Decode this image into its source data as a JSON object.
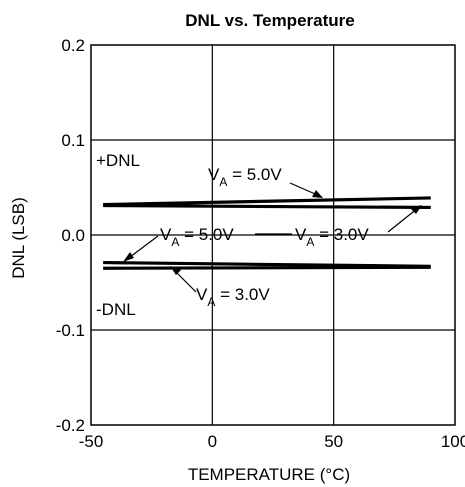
{
  "chart_data": {
    "type": "line",
    "title": "DNL vs. Temperature",
    "xlabel": "TEMPERATURE (°C)",
    "ylabel": "DNL (LSB)",
    "xlim": [
      -50,
      100
    ],
    "ylim": [
      -0.2,
      0.2
    ],
    "xticks": [
      -50,
      0,
      50,
      100
    ],
    "yticks": [
      -0.2,
      -0.1,
      0.0,
      0.1,
      0.2
    ],
    "xtick_labels": [
      "-50",
      "0",
      "50",
      "100"
    ],
    "ytick_labels": [
      "-0.2",
      "-0.1",
      "0.0",
      "0.1",
      "0.2"
    ],
    "grid": true,
    "series": [
      {
        "x": [
          -45,
          90
        ],
        "y": [
          0.032,
          0.039
        ]
      },
      {
        "x": [
          -45,
          90
        ],
        "y": [
          0.031,
          0.029
        ]
      },
      {
        "x": [
          -45,
          90
        ],
        "y": [
          -0.029,
          -0.033
        ]
      },
      {
        "x": [
          -45,
          90
        ],
        "y": [
          -0.035,
          -0.034
        ]
      }
    ],
    "annotations": [
      {
        "text": "+DNL"
      },
      {
        "text": "-DNL"
      },
      {
        "prefix": "V",
        "sub": "A",
        "suffix": " = 5.0V"
      },
      {
        "prefix": "V",
        "sub": "A",
        "suffix": " = 3.0V"
      },
      {
        "prefix": "V",
        "sub": "A",
        "suffix": " = 5.0V"
      },
      {
        "prefix": "V",
        "sub": "A",
        "suffix": " = 3.0V"
      }
    ]
  }
}
